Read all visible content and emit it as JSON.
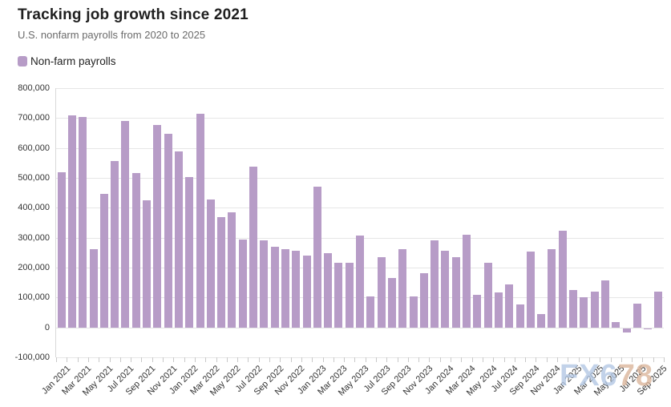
{
  "header": {
    "title": "Tracking job growth since 2021",
    "subtitle": "U.S. nonfarm payrolls from 2020 to 2025"
  },
  "legend": {
    "label": "Non-farm payrolls",
    "swatch_color": "#b79cc7"
  },
  "watermark": {
    "text_primary": "FX6",
    "text_secondary": "78",
    "color_primary": "#b3c8e4",
    "color_secondary": "#dcb69c"
  },
  "chart_data": {
    "type": "bar",
    "title": "Tracking job growth since 2021",
    "subtitle": "U.S. nonfarm payrolls from 2020 to 2025",
    "series_name": "Non-farm payrolls",
    "bar_color": "#b79cc7",
    "grid": "horizontal",
    "legend_position": "top-left",
    "ylim": [
      -100000,
      800000
    ],
    "y_tick_step": 100000,
    "y_tick_labels": [
      "800,000",
      "700,000",
      "600,000",
      "500,000",
      "400,000",
      "300,000",
      "200,000",
      "100,000",
      "0",
      "-100,000"
    ],
    "x_label_every": 2,
    "months": [
      "Jan 2021",
      "Feb 2021",
      "Mar 2021",
      "Apr 2021",
      "May 2021",
      "Jun 2021",
      "Jul 2021",
      "Aug 2021",
      "Sep 2021",
      "Oct 2021",
      "Nov 2021",
      "Dec 2021",
      "Jan 2022",
      "Feb 2022",
      "Mar 2022",
      "Apr 2022",
      "May 2022",
      "Jun 2022",
      "Jul 2022",
      "Aug 2022",
      "Sep 2022",
      "Oct 2022",
      "Nov 2022",
      "Dec 2022",
      "Jan 2023",
      "Feb 2023",
      "Mar 2023",
      "Apr 2023",
      "May 2023",
      "Jun 2023",
      "Jul 2023",
      "Aug 2023",
      "Sep 2023",
      "Oct 2023",
      "Nov 2023",
      "Dec 2023",
      "Jan 2024",
      "Feb 2024",
      "Mar 2024",
      "Apr 2024",
      "May 2024",
      "Jun 2024",
      "Jul 2024",
      "Aug 2024",
      "Sep 2024",
      "Oct 2024",
      "Nov 2024",
      "Dec 2024",
      "Jan 2025",
      "Feb 2025",
      "Mar 2025",
      "Apr 2025",
      "May 2025",
      "Jun 2025",
      "Jul 2025",
      "Aug 2025",
      "Sep 2025"
    ],
    "values": [
      520000,
      710000,
      704000,
      263000,
      447000,
      557000,
      689000,
      517000,
      424000,
      677000,
      647000,
      588000,
      504000,
      714000,
      428000,
      368000,
      386000,
      293000,
      537000,
      292000,
      269000,
      263000,
      256000,
      239000,
      472000,
      248000,
      217000,
      217000,
      306000,
      105000,
      236000,
      165000,
      262000,
      105000,
      182000,
      290000,
      256000,
      236000,
      310000,
      108000,
      216000,
      118000,
      144000,
      78000,
      255000,
      44000,
      261000,
      323000,
      125000,
      102000,
      120000,
      158000,
      19000,
      -13000,
      79000,
      -4000,
      119000
    ]
  }
}
